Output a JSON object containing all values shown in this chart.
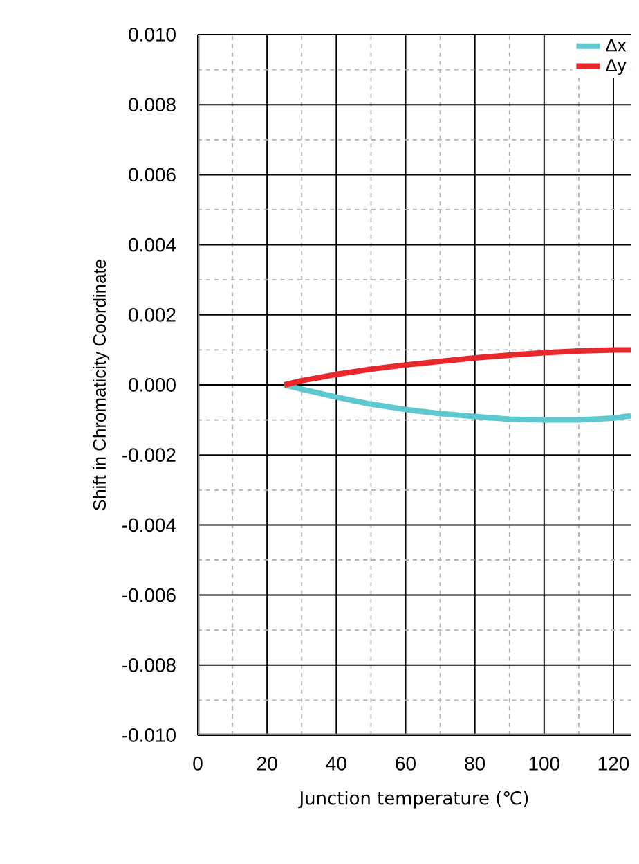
{
  "chart_data": {
    "type": "line",
    "xlabel": "Junction temperature (℃)",
    "ylabel": "Shift in Chromaticity Coordinate",
    "xlim": [
      0,
      125
    ],
    "xticks": [
      0,
      20,
      40,
      60,
      80,
      100,
      120
    ],
    "ylim": [
      -0.01,
      0.01
    ],
    "yticks": [
      {
        "value": -0.01,
        "label": "-0.010"
      },
      {
        "value": -0.008,
        "label": "-0.008"
      },
      {
        "value": -0.006,
        "label": "-0.006"
      },
      {
        "value": -0.004,
        "label": "-0.004"
      },
      {
        "value": -0.002,
        "label": "-0.002"
      },
      {
        "value": 0,
        "label": "0.000"
      },
      {
        "value": 0.002,
        "label": "0.002"
      },
      {
        "value": 0.004,
        "label": "0.004"
      },
      {
        "value": 0.006,
        "label": "0.006"
      },
      {
        "value": 0.008,
        "label": "0.008"
      },
      {
        "value": 0.01,
        "label": "0.010"
      }
    ],
    "x": [
      25,
      30,
      40,
      50,
      60,
      70,
      80,
      90,
      100,
      110,
      120,
      125
    ],
    "series": [
      {
        "name": "Δx",
        "color": "#5ec8d0",
        "values": [
          0,
          -0.00012,
          -0.00035,
          -0.00055,
          -0.0007,
          -0.00082,
          -0.0009,
          -0.00098,
          -0.001,
          -0.001,
          -0.00095,
          -0.00088
        ]
      },
      {
        "name": "Δy",
        "color": "#e8282a",
        "values": [
          0,
          0.00012,
          0.0003,
          0.00045,
          0.00057,
          0.00067,
          0.00077,
          0.00085,
          0.00092,
          0.00097,
          0.001,
          0.001
        ]
      }
    ],
    "grid": true,
    "legend": "top right",
    "marker": "none",
    "line_style": "solid"
  }
}
